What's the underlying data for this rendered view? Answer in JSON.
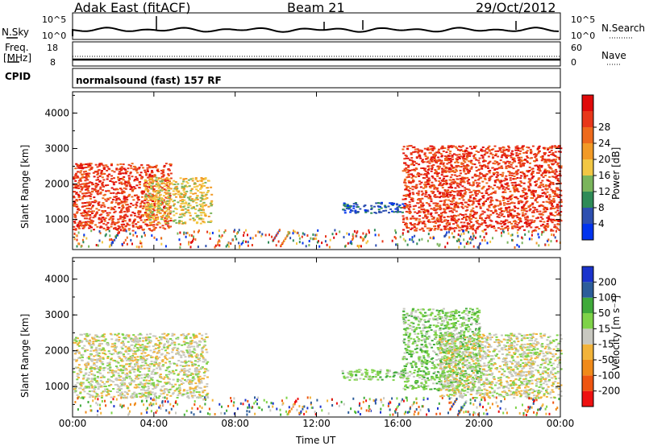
{
  "header": {
    "title": "Adak East (fitACF)",
    "beam": "Beam 21",
    "date": "29/Oct/2012"
  },
  "status_panel": {
    "nsky_label": "N.Sky",
    "nsky_top_tick": "10^5",
    "nsky_bottom_tick": "10^0",
    "nsearch_label": "N.Search",
    "nsearch_top_tick": "10^5",
    "nsearch_bottom_tick": "10^0",
    "freq_label": "Freq.",
    "freq_unit": "[MHz]",
    "freq_top_tick": "18",
    "freq_bottom_tick": "8",
    "nave_label": "Nave",
    "nave_top_tick": "60",
    "nave_bottom_tick": "0",
    "cpid_label": "CPID",
    "cpid_value": "normalsound (fast) 157 RF"
  },
  "colors": {
    "power_scale": [
      "#0033ee",
      "#2d4fb0",
      "#2e8b57",
      "#7ab55c",
      "#f2c744",
      "#f29a26",
      "#ee6a1c",
      "#e8371a",
      "#e00a0a"
    ],
    "velocity_scale": [
      "#ee1111",
      "#ee5511",
      "#f08a1a",
      "#f2b33a",
      "#c8c8c0",
      "#7ed348",
      "#3faa3a",
      "#2c5d9a",
      "#1a33cc"
    ]
  },
  "chart_data": [
    {
      "type": "heatmap",
      "panel": "power",
      "ylabel": "Slant Range [km]",
      "yticks": [
        "1000",
        "2000",
        "3000",
        "4000"
      ],
      "ylim": [
        150,
        4600
      ],
      "xlim": [
        0,
        24
      ],
      "xticks": [
        "00:00",
        "04:00",
        "08:00",
        "12:00",
        "16:00",
        "20:00",
        "00:00"
      ],
      "colorbar_label": "Power [dB]",
      "colorbar_ticks": [
        "4",
        "8",
        "12",
        "16",
        "20",
        "24",
        "28"
      ],
      "regions": [
        {
          "t0": 0.0,
          "t1": 4.8,
          "r0": 700,
          "r1": 2600,
          "level": 7
        },
        {
          "t0": 3.5,
          "t1": 6.8,
          "r0": 900,
          "r1": 2200,
          "level": 4
        },
        {
          "t0": 13.2,
          "t1": 16.3,
          "r0": 1200,
          "r1": 1500,
          "level": 1
        },
        {
          "t0": 16.2,
          "t1": 24.0,
          "r0": 700,
          "r1": 3100,
          "level": 7
        }
      ]
    },
    {
      "type": "heatmap",
      "panel": "velocity",
      "ylabel": "Slant Range [km]",
      "yticks": [
        "1000",
        "2000",
        "3000",
        "4000"
      ],
      "ylim": [
        150,
        4600
      ],
      "xlim": [
        0,
        24
      ],
      "xticks": [
        "00:00",
        "04:00",
        "08:00",
        "12:00",
        "16:00",
        "20:00",
        "00:00"
      ],
      "xlabel": "Time UT",
      "colorbar_label": "Velocity [m s⁻¹]",
      "colorbar_ticks": [
        "200",
        "100",
        "50",
        "15",
        "-15",
        "-50",
        "-100",
        "-200"
      ],
      "regions": [
        {
          "t0": 0.0,
          "t1": 6.6,
          "r0": 700,
          "r1": 2500,
          "level": 4
        },
        {
          "t0": 13.2,
          "t1": 16.3,
          "r0": 1200,
          "r1": 1500,
          "level": 5
        },
        {
          "t0": 16.2,
          "t1": 20.0,
          "r0": 900,
          "r1": 3200,
          "level": 5
        },
        {
          "t0": 18.0,
          "t1": 24.0,
          "r0": 700,
          "r1": 2500,
          "level": 4
        }
      ]
    }
  ]
}
